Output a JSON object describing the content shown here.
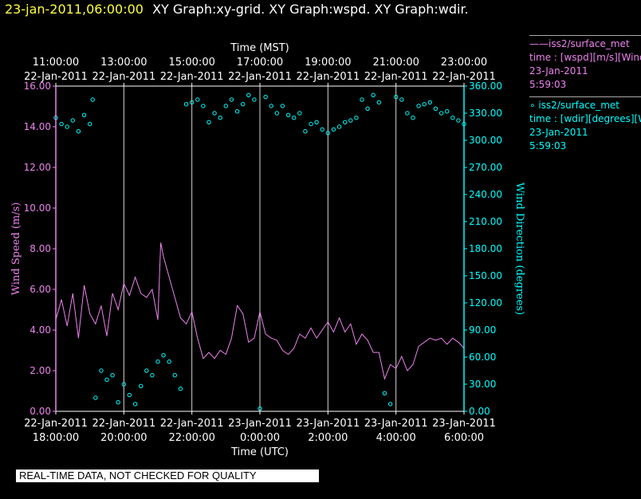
{
  "header": {
    "timestamp": "23-jan-2011,06:00:00",
    "titles": "XY Graph:xy-grid.  XY Graph:wspd.  XY Graph:wdir."
  },
  "colors": {
    "timestamp": "#ffff3f",
    "wspd": "#ee82ee",
    "wdir": "#00ffff",
    "grid": "#d3d3d3",
    "text": "#ffffff"
  },
  "legend": [
    {
      "line1": "——iss2/surface_met",
      "line2": "time : [wspd][m/s][Wind",
      "line3": "23-Jan-2011",
      "line4": "5:59:03",
      "color": "#ee82ee"
    },
    {
      "line1": "∘ iss2/surface_met",
      "line2": "time : [wdir][degrees][W",
      "line3": "23-Jan-2011",
      "line4": "5:59:03",
      "color": "#00ffff"
    }
  ],
  "footer_note": "REAL-TIME DATA, NOT CHECKED FOR QUALITY",
  "chart_data": {
    "type": "line",
    "top_axis": {
      "title": "Time (MST)",
      "ticks": [
        {
          "time": "11:00:00",
          "date": "22-Jan-2011"
        },
        {
          "time": "13:00:00",
          "date": "22-Jan-2011"
        },
        {
          "time": "15:00:00",
          "date": "22-Jan-2011"
        },
        {
          "time": "17:00:00",
          "date": "22-Jan-2011"
        },
        {
          "time": "19:00:00",
          "date": "22-Jan-2011"
        },
        {
          "time": "21:00:00",
          "date": "22-Jan-2011"
        },
        {
          "time": "23:00:00",
          "date": "22-Jan-2011"
        }
      ]
    },
    "bottom_axis": {
      "title": "Time (UTC)",
      "ticks": [
        {
          "date": "22-Jan-2011",
          "time": "18:00:00"
        },
        {
          "date": "22-Jan-2011",
          "time": "20:00:00"
        },
        {
          "date": "22-Jan-2011",
          "time": "22:00:00"
        },
        {
          "date": "23-Jan-2011",
          "time": "0:00:00"
        },
        {
          "date": "23-Jan-2011",
          "time": "2:00:00"
        },
        {
          "date": "23-Jan-2011",
          "time": "4:00:00"
        },
        {
          "date": "23-Jan-2011",
          "time": "6:00:00"
        }
      ]
    },
    "x_range_utc": [
      "2011-01-22 18:00",
      "2011-01-23 06:00"
    ],
    "left_axis": {
      "label": "Wind Speed (m/s)",
      "range": [
        0,
        16
      ],
      "ticks": [
        "0.00",
        "2.00",
        "4.00",
        "6.00",
        "8.00",
        "10.00",
        "12.00",
        "14.00",
        "16.00"
      ]
    },
    "right_axis": {
      "label": "Wind Direction (degrees)",
      "range": [
        0,
        360
      ],
      "ticks": [
        "0.00",
        "30.00",
        "60.00",
        "90.00",
        "120.00",
        "150.00",
        "180.00",
        "210.00",
        "240.00",
        "270.00",
        "300.00",
        "330.00",
        "360.00"
      ]
    },
    "grid": "vertical",
    "series": [
      {
        "name": "iss2/surface_met wspd",
        "type": "line",
        "axis": "left",
        "x": [
          "18:00",
          "18:10",
          "18:20",
          "18:30",
          "18:40",
          "18:50",
          "19:00",
          "19:10",
          "19:20",
          "19:30",
          "19:40",
          "19:50",
          "20:00",
          "20:10",
          "20:20",
          "20:30",
          "20:40",
          "20:50",
          "21:00",
          "21:05",
          "21:10",
          "21:20",
          "21:30",
          "21:40",
          "21:50",
          "22:00",
          "22:10",
          "22:20",
          "22:30",
          "22:40",
          "22:50",
          "23:00",
          "23:10",
          "23:20",
          "23:30",
          "23:40",
          "23:50",
          "00:00",
          "00:10",
          "00:20",
          "00:30",
          "00:40",
          "00:50",
          "01:00",
          "01:10",
          "01:20",
          "01:30",
          "01:40",
          "01:50",
          "02:00",
          "02:10",
          "02:20",
          "02:30",
          "02:40",
          "02:50",
          "03:00",
          "03:10",
          "03:20",
          "03:30",
          "03:40",
          "03:50",
          "04:00",
          "04:10",
          "04:20",
          "04:30",
          "04:40",
          "04:50",
          "05:00",
          "05:10",
          "05:20",
          "05:30",
          "05:40",
          "05:50",
          "06:00"
        ],
        "y": [
          4.5,
          5.5,
          4.2,
          5.8,
          3.6,
          6.2,
          4.8,
          4.3,
          5.2,
          3.7,
          5.8,
          5.0,
          6.3,
          5.7,
          6.6,
          5.8,
          5.6,
          6.0,
          4.5,
          8.3,
          7.6,
          6.6,
          5.6,
          4.6,
          4.3,
          4.9,
          3.6,
          2.6,
          2.9,
          2.6,
          3.0,
          2.8,
          3.6,
          5.2,
          4.8,
          3.4,
          3.6,
          4.9,
          3.8,
          3.6,
          3.5,
          3.0,
          2.8,
          3.1,
          3.8,
          3.6,
          4.1,
          3.6,
          4.0,
          4.4,
          3.9,
          4.6,
          3.9,
          4.3,
          3.3,
          3.8,
          3.5,
          2.9,
          2.9,
          1.6,
          2.3,
          2.1,
          2.7,
          2.0,
          2.3,
          3.2,
          3.4,
          3.6,
          3.5,
          3.6,
          3.3,
          3.6,
          3.4,
          3.1
        ]
      },
      {
        "name": "iss2/surface_met wdir",
        "type": "scatter",
        "axis": "right",
        "x": [
          "18:00",
          "18:10",
          "18:20",
          "18:30",
          "18:40",
          "18:50",
          "19:00",
          "19:05",
          "19:10",
          "19:20",
          "19:30",
          "19:40",
          "19:50",
          "20:00",
          "20:10",
          "20:20",
          "20:30",
          "20:40",
          "20:50",
          "21:00",
          "21:10",
          "21:20",
          "21:30",
          "21:40",
          "21:50",
          "22:00",
          "22:10",
          "22:20",
          "22:30",
          "22:40",
          "22:50",
          "23:00",
          "23:10",
          "23:20",
          "23:30",
          "23:40",
          "23:50",
          "00:00",
          "00:10",
          "00:20",
          "00:30",
          "00:40",
          "00:50",
          "01:00",
          "01:10",
          "01:20",
          "01:30",
          "01:40",
          "01:50",
          "02:00",
          "02:10",
          "02:20",
          "02:30",
          "02:40",
          "02:50",
          "03:00",
          "03:10",
          "03:20",
          "03:30",
          "03:40",
          "03:50",
          "04:00",
          "04:10",
          "04:20",
          "04:30",
          "04:40",
          "04:50",
          "05:00",
          "05:10",
          "05:20",
          "05:30",
          "05:40",
          "05:50",
          "06:00"
        ],
        "y": [
          325,
          318,
          315,
          322,
          310,
          328,
          318,
          345,
          15,
          45,
          35,
          40,
          10,
          30,
          18,
          8,
          28,
          45,
          40,
          55,
          62,
          55,
          40,
          25,
          340,
          342,
          345,
          338,
          320,
          330,
          325,
          338,
          345,
          332,
          340,
          350,
          345,
          3,
          348,
          338,
          330,
          338,
          328,
          325,
          330,
          310,
          318,
          320,
          312,
          308,
          312,
          315,
          320,
          322,
          325,
          345,
          335,
          350,
          342,
          20,
          8,
          348,
          345,
          330,
          325,
          338,
          340,
          342,
          335,
          330,
          332,
          325,
          322,
          318
        ]
      }
    ]
  }
}
